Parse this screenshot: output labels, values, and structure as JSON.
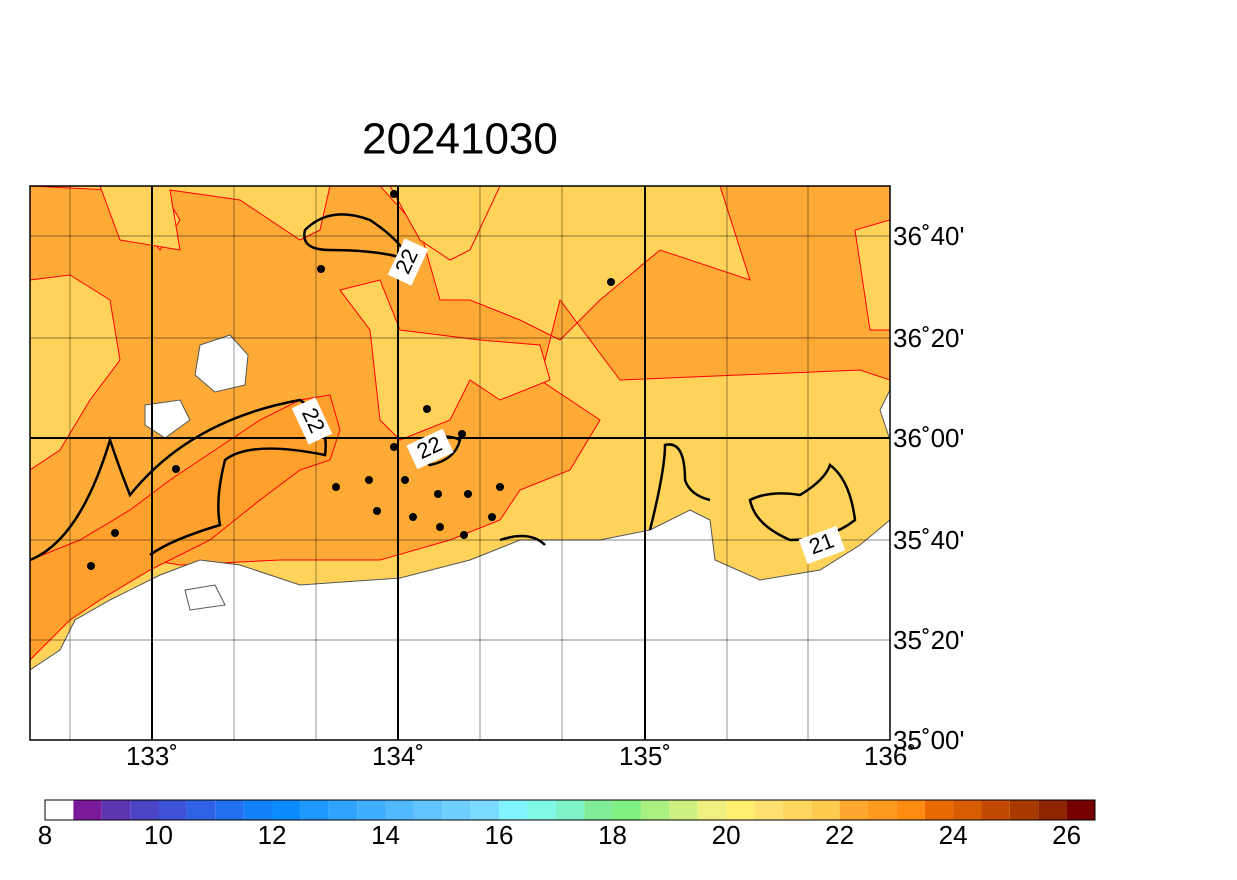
{
  "title": "20241030",
  "x_axis": {
    "labels": [
      "133˚",
      "134˚",
      "135˚",
      "136˚"
    ]
  },
  "y_axis": {
    "labels": [
      "36˚40'",
      "36˚20'",
      "36˚00'",
      "35˚40'",
      "35˚20'",
      "35˚00'"
    ]
  },
  "contour_labels": [
    "22",
    "22",
    "22",
    "21"
  ],
  "colorbar": {
    "labels": [
      "8",
      "10",
      "12",
      "14",
      "16",
      "18",
      "20",
      "22",
      "24",
      "26"
    ],
    "colors": [
      "#ffffff",
      "#7a1a9a",
      "#5e35b1",
      "#4b44c4",
      "#3d52d6",
      "#2f62e4",
      "#2170ef",
      "#1480f7",
      "#0a8cff",
      "#1e98ff",
      "#30a3ff",
      "#40aeff",
      "#50b9ff",
      "#60c4ff",
      "#6ecfff",
      "#7adaff",
      "#80f4ff",
      "#80f8e8",
      "#80f4c8",
      "#80ec98",
      "#80f080",
      "#a8f080",
      "#cdf080",
      "#f0f080",
      "#fff070",
      "#ffe070",
      "#ffd860",
      "#ffcc50",
      "#ffa830",
      "#ff9a20",
      "#ff8c10",
      "#e86a00",
      "#d85c00",
      "#c24a00",
      "#a83a00",
      "#8e2400",
      "#760000"
    ]
  }
}
